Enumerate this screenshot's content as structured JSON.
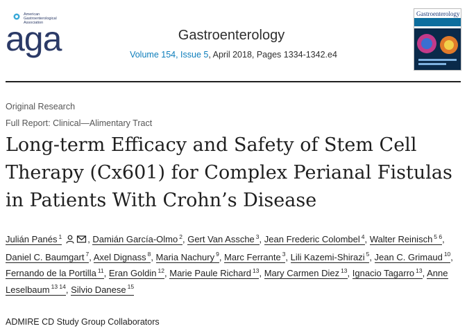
{
  "header": {
    "logo_text": "aga",
    "logo_org": [
      "American",
      "Gastroenterological",
      "Association"
    ],
    "journal_name": "Gastroenterology",
    "volume_issue": "Volume 154, Issue 5",
    "date_pages": ", April 2018, Pages 1334-1342.e4",
    "cover_title": "Gastroenterology"
  },
  "article": {
    "type": "Original Research",
    "report": "Full Report: Clinical—Alimentary Tract",
    "title": "Long-term Efficacy and Safety of Stem Cell Therapy (Cx601) for Complex Perianal Fistulas in Patients With Crohn’s Disease"
  },
  "authors": [
    {
      "name": "Julián Panés",
      "aff": "1"
    },
    {
      "name": "Damián García-Olmo",
      "aff": "2"
    },
    {
      "name": "Gert Van Assche",
      "aff": "3"
    },
    {
      "name": "Jean Frederic Colombel",
      "aff": "4"
    },
    {
      "name": "Walter Reinisch",
      "aff": "5 6"
    },
    {
      "name": "Daniel C. Baumgart",
      "aff": "7"
    },
    {
      "name": "Axel Dignass",
      "aff": "8"
    },
    {
      "name": "Maria Nachury",
      "aff": "9"
    },
    {
      "name": "Marc Ferrante",
      "aff": "3"
    },
    {
      "name": "Lili Kazemi-Shirazi",
      "aff": "5"
    },
    {
      "name": "Jean C. Grimaud",
      "aff": "10"
    },
    {
      "name": "Fernando de la Portilla",
      "aff": "11"
    },
    {
      "name": "Eran Goldin",
      "aff": "12"
    },
    {
      "name": "Marie Paule Richard",
      "aff": "13"
    },
    {
      "name": "Mary Carmen Diez",
      "aff": "13"
    },
    {
      "name": "Ignacio Tagarro",
      "aff": "13"
    },
    {
      "name": "Anne Leselbaum",
      "aff": "13 14"
    },
    {
      "name": "Silvio Danese",
      "aff": "15"
    }
  ],
  "collaborators": "ADMIRE CD Study Group Collaborators"
}
